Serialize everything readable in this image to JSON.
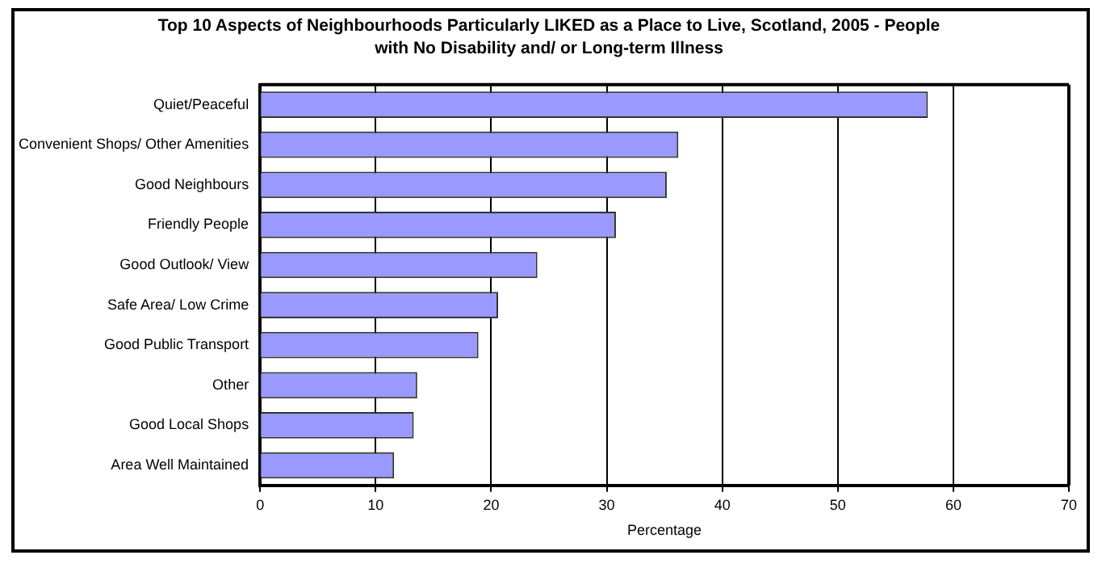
{
  "chart_data": {
    "type": "bar",
    "orientation": "horizontal",
    "title": "Top 10 Aspects of Neighbourhoods Particularly LIKED as a Place to Live, Scotland, 2005 - People with No Disability and/ or Long-term Illness",
    "xlabel": "Percentage",
    "categories": [
      "Quiet/Peaceful",
      "Convenient Shops/ Other Amenities",
      "Good Neighbours",
      "Friendly People",
      "Good Outlook/ View",
      "Safe Area/ Low Crime",
      "Good Public Transport",
      "Other",
      "Good Local Shops",
      "Area Well Maintained"
    ],
    "values": [
      57.8,
      36.2,
      35.2,
      30.8,
      24.0,
      20.6,
      18.9,
      13.6,
      13.3,
      11.6
    ],
    "color": "#9999ff",
    "xlim": [
      0,
      70
    ],
    "xticks": [
      0,
      10,
      20,
      30,
      40,
      50,
      60,
      70
    ],
    "grid": "x",
    "legend": false
  }
}
